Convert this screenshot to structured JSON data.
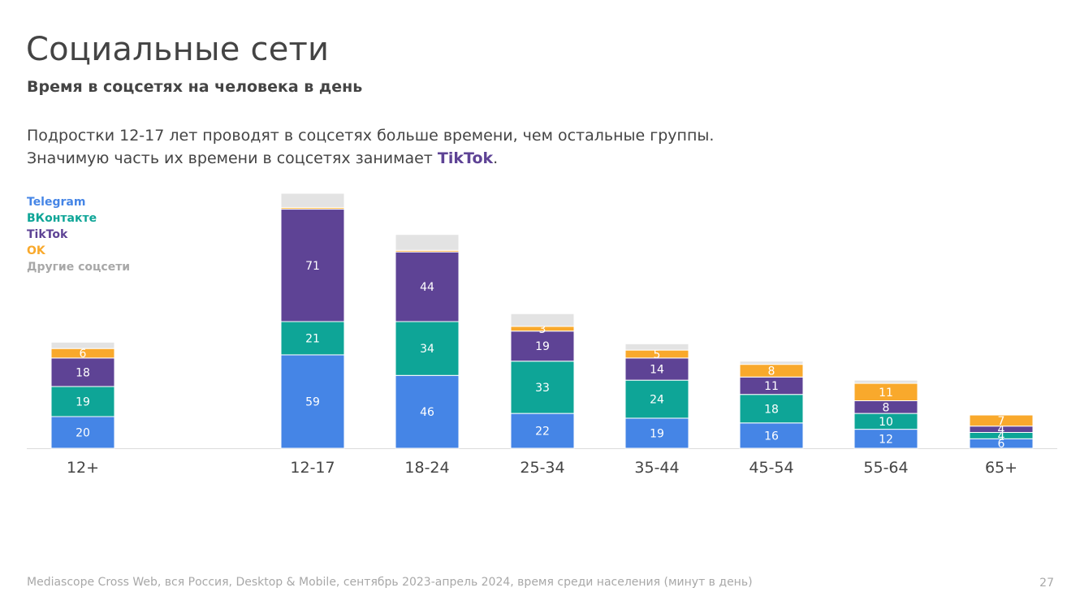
{
  "page": {
    "title": "Социальные сети",
    "subtitle": "Время в соцсетях на человека в день",
    "lead_line1": "Подростки 12-17 лет проводят в соцсетях больше времени, чем остальные группы.",
    "lead_line2_prefix": "Значимую часть их времени в соцсетях занимает ",
    "lead_line2_highlight": "TikTok",
    "lead_line2_suffix": ".",
    "footer": "Mediascope Cross Web, вся Россия, Desktop & Mobile, сентябрь 2023-апрель 2024, время среди населения (минут в день)",
    "page_number": "27"
  },
  "colors": {
    "telegram": "#4585E6",
    "vkontakte": "#0EA597",
    "tiktok": "#5E4395",
    "ok": "#F9A92C",
    "other": "#E3E3E3"
  },
  "chart_data": {
    "type": "bar",
    "stacked": true,
    "categories": [
      "12+",
      "12-17",
      "18-24",
      "25-34",
      "35-44",
      "45-54",
      "55-64",
      "65+"
    ],
    "series": [
      {
        "name": "Telegram",
        "key": "telegram",
        "values": [
          20,
          59,
          46,
          22,
          19,
          16,
          12,
          6
        ]
      },
      {
        "name": "ВКонтакте",
        "key": "vkontakte",
        "values": [
          19,
          21,
          34,
          33,
          24,
          18,
          10,
          4
        ]
      },
      {
        "name": "TikTok",
        "key": "tiktok",
        "values": [
          18,
          71,
          44,
          19,
          14,
          11,
          8,
          4
        ]
      },
      {
        "name": "OK",
        "key": "ok",
        "values": [
          6,
          1,
          1,
          3,
          5,
          8,
          11,
          7
        ]
      },
      {
        "name": "Другие соцсети",
        "key": "other",
        "values": [
          4,
          9,
          10,
          8,
          4,
          2,
          2,
          0
        ]
      }
    ],
    "labels": {
      "telegram": [
        "20",
        "59",
        "46",
        "22",
        "19",
        "16",
        "12",
        "6"
      ],
      "vkontakte": [
        "19",
        "21",
        "34",
        "33",
        "24",
        "18",
        "10",
        "4"
      ],
      "tiktok": [
        "18",
        "71",
        "44",
        "19",
        "14",
        "11",
        "8",
        "4"
      ],
      "ok": [
        "6",
        "",
        "",
        "3",
        "5",
        "8",
        "11",
        "7"
      ],
      "other": [
        "",
        "",
        "",
        "",
        "",
        "",
        "",
        ""
      ]
    },
    "legend": [
      "Telegram",
      "ВКонтакте",
      "TikTok",
      "OK",
      "Другие соцсети"
    ],
    "legend_position": "top-left",
    "xlabel": "",
    "ylabel": "",
    "unit": "минут в день"
  }
}
